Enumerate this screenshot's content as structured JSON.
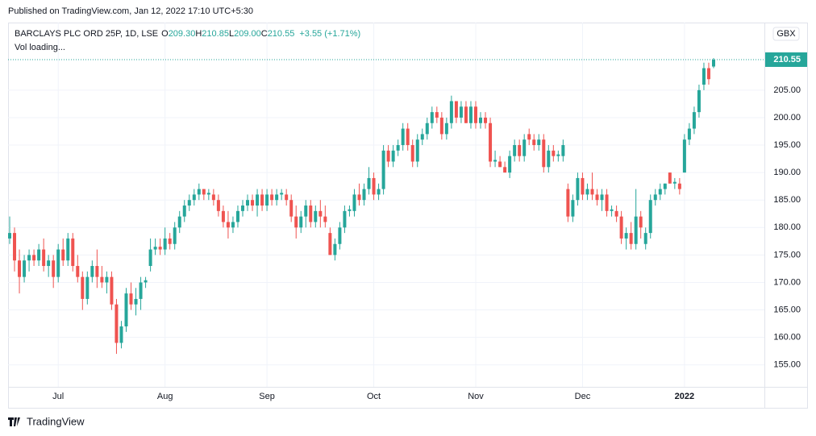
{
  "header": {
    "published": "Published on TradingView.com, Jan 12, 2022 17:10 UTC+5:30",
    "footer": "TradingView"
  },
  "chart_data": {
    "type": "candlestick",
    "title": "BARCLAYS PLC ORD 25P, 1D, LSE",
    "legend": {
      "o_label": "O",
      "open": "209.30",
      "h_label": "H",
      "high": "210.85",
      "l_label": "L",
      "low": "209.00",
      "c_label": "C",
      "close": "210.55",
      "change": "+3.55 (+1.71%)"
    },
    "volume_note": "Vol loading...",
    "currency": "GBX",
    "up_color": "#26a69a",
    "down_color": "#ef5350",
    "last_price": {
      "value": 210.55,
      "label": "210.55"
    },
    "ylim": [
      151.0,
      217.3
    ],
    "yticks": [
      {
        "value": 155,
        "label": "155.00"
      },
      {
        "value": 160,
        "label": "160.00"
      },
      {
        "value": 165,
        "label": "165.00"
      },
      {
        "value": 170,
        "label": "170.00"
      },
      {
        "value": 175,
        "label": "175.00"
      },
      {
        "value": 180,
        "label": "180.00"
      },
      {
        "value": 185,
        "label": "185.00"
      },
      {
        "value": 190,
        "label": "190.00"
      },
      {
        "value": 195,
        "label": "195.00"
      },
      {
        "value": 200,
        "label": "200.00"
      },
      {
        "value": 205,
        "label": "205.00"
      }
    ],
    "grid": true,
    "categories": [
      null,
      null,
      null,
      null,
      null,
      null,
      null,
      null,
      null,
      null,
      "Jul",
      null,
      null,
      null,
      null,
      null,
      null,
      null,
      null,
      null,
      null,
      null,
      null,
      null,
      null,
      null,
      null,
      null,
      null,
      null,
      null,
      null,
      "Aug",
      null,
      null,
      null,
      null,
      null,
      null,
      null,
      null,
      null,
      null,
      null,
      null,
      null,
      null,
      null,
      null,
      null,
      null,
      null,
      null,
      "Sep",
      null,
      null,
      null,
      null,
      null,
      null,
      null,
      null,
      null,
      null,
      null,
      null,
      null,
      null,
      null,
      null,
      null,
      null,
      null,
      null,
      null,
      "Oct",
      null,
      null,
      null,
      null,
      null,
      null,
      null,
      null,
      null,
      null,
      null,
      null,
      null,
      null,
      null,
      null,
      null,
      null,
      null,
      null,
      "Nov",
      null,
      null,
      null,
      null,
      null,
      null,
      null,
      null,
      null,
      null,
      null,
      null,
      null,
      null,
      null,
      null,
      null,
      null,
      null,
      null,
      null,
      "Dec",
      null,
      null,
      null,
      null,
      null,
      null,
      null,
      null,
      null,
      null,
      null,
      null,
      null,
      null,
      null,
      null,
      null,
      null,
      null,
      null,
      "2022",
      null,
      null,
      null,
      null,
      null,
      null
    ],
    "candles": [
      [
        178,
        182,
        177,
        179
      ],
      [
        179,
        180,
        172,
        174
      ],
      [
        174,
        176,
        168,
        171
      ],
      [
        171,
        175,
        170,
        174
      ],
      [
        174,
        176,
        172,
        175
      ],
      [
        175,
        176,
        173,
        174
      ],
      [
        174,
        177,
        173,
        176
      ],
      [
        176,
        178,
        172,
        173
      ],
      [
        173,
        175,
        171,
        174
      ],
      [
        174,
        175,
        169,
        171
      ],
      [
        171,
        177,
        170,
        176
      ],
      [
        176,
        178,
        173,
        174
      ],
      [
        174,
        179,
        173,
        178
      ],
      [
        178,
        179,
        172,
        173
      ],
      [
        173,
        175,
        170,
        171
      ],
      [
        171,
        172,
        165,
        167
      ],
      [
        167,
        172,
        166,
        171
      ],
      [
        171,
        174,
        170,
        173
      ],
      [
        173,
        176,
        169,
        171
      ],
      [
        171,
        173,
        169,
        170
      ],
      [
        170,
        172,
        168,
        171
      ],
      [
        171,
        172,
        165,
        166
      ],
      [
        166,
        167,
        157,
        159
      ],
      [
        159,
        163,
        158,
        162
      ],
      [
        162,
        169,
        161,
        168
      ],
      [
        168,
        170,
        165,
        166
      ],
      [
        166,
        169,
        164,
        167
      ],
      [
        167,
        171,
        165,
        170
      ],
      [
        170,
        171,
        169,
        170.4
      ],
      [
        173,
        178,
        172,
        176
      ],
      [
        176,
        178,
        175,
        176.5
      ],
      [
        176.5,
        178,
        175,
        176
      ],
      [
        176,
        180,
        175,
        178
      ],
      [
        178,
        179,
        176,
        177
      ],
      [
        177,
        181,
        176,
        180
      ],
      [
        180,
        183,
        179,
        182
      ],
      [
        182,
        185,
        181,
        184
      ],
      [
        184,
        186,
        183,
        185
      ],
      [
        185,
        187,
        184,
        186
      ],
      [
        186,
        188,
        185,
        187
      ],
      [
        187,
        187,
        185,
        186
      ],
      [
        186,
        187,
        185,
        186.3
      ],
      [
        186,
        187,
        184,
        185
      ],
      [
        185,
        186,
        182,
        183
      ],
      [
        183,
        184,
        180,
        181
      ],
      [
        181,
        183,
        178,
        180
      ],
      [
        180,
        182,
        179,
        181
      ],
      [
        181,
        184,
        180,
        183
      ],
      [
        183,
        185,
        182,
        184
      ],
      [
        184,
        186,
        183,
        185
      ],
      [
        185,
        186,
        183,
        184
      ],
      [
        184,
        187,
        182,
        186
      ],
      [
        186,
        187,
        183,
        184
      ],
      [
        184,
        187,
        183,
        186
      ],
      [
        186,
        187,
        184,
        185
      ],
      [
        185,
        187,
        184,
        186
      ],
      [
        186,
        187,
        185,
        186.3
      ],
      [
        186,
        187,
        184,
        185
      ],
      [
        185,
        186,
        181,
        182
      ],
      [
        182,
        184,
        178,
        180
      ],
      [
        180,
        183,
        179,
        182
      ],
      [
        182,
        185,
        180,
        184
      ],
      [
        184,
        185,
        180,
        181
      ],
      [
        181,
        184,
        180,
        183
      ],
      [
        183,
        185,
        180,
        182
      ],
      [
        182,
        184,
        180,
        181
      ],
      [
        179,
        180,
        175,
        175
      ],
      [
        175,
        178,
        174,
        177
      ],
      [
        177,
        181,
        176,
        180
      ],
      [
        180,
        184,
        179,
        183
      ],
      [
        183,
        184,
        182,
        183.3
      ],
      [
        183,
        187,
        182,
        186
      ],
      [
        186,
        188,
        184,
        185
      ],
      [
        185,
        188,
        184,
        187
      ],
      [
        187,
        191,
        186,
        189
      ],
      [
        189,
        190,
        185,
        186
      ],
      [
        186,
        188,
        185,
        187
      ],
      [
        187,
        195,
        186,
        194
      ],
      [
        194,
        195,
        191,
        192
      ],
      [
        192,
        195,
        191,
        194
      ],
      [
        194,
        196,
        193,
        195
      ],
      [
        195,
        199,
        194,
        198
      ],
      [
        198,
        199,
        194,
        195
      ],
      [
        195,
        196,
        191,
        192
      ],
      [
        192,
        197,
        191,
        196
      ],
      [
        196,
        198,
        195,
        197
      ],
      [
        197,
        200,
        196,
        199
      ],
      [
        199,
        202,
        198,
        201
      ],
      [
        201,
        202,
        199,
        200
      ],
      [
        200,
        201,
        196,
        197
      ],
      [
        197,
        200,
        196,
        199
      ],
      [
        199,
        204,
        198,
        203
      ],
      [
        203,
        203,
        199,
        200
      ],
      [
        200,
        203,
        199,
        202
      ],
      [
        202,
        203,
        199,
        199
      ],
      [
        199,
        203,
        198,
        202
      ],
      [
        202,
        203,
        198,
        199
      ],
      [
        199,
        201,
        198,
        200
      ],
      [
        200,
        201,
        198,
        199
      ],
      [
        199,
        200,
        191,
        192
      ],
      [
        192,
        194,
        191,
        192.3
      ],
      [
        192,
        193,
        191,
        191
      ],
      [
        191,
        192,
        190,
        190
      ],
      [
        190,
        194,
        189,
        193
      ],
      [
        193,
        196,
        192,
        195
      ],
      [
        195,
        196,
        192,
        193
      ],
      [
        193,
        197,
        192,
        196
      ],
      [
        197,
        198,
        195,
        196
      ],
      [
        196,
        197,
        194,
        195
      ],
      [
        195,
        197,
        194,
        196
      ],
      [
        196,
        197,
        190,
        191
      ],
      [
        191,
        195,
        190,
        194
      ],
      [
        194,
        195,
        192,
        193
      ],
      [
        193,
        194,
        192,
        193.3
      ],
      [
        193,
        196,
        192,
        195
      ],
      [
        187,
        188,
        181,
        182
      ],
      [
        182,
        186,
        181,
        185
      ],
      [
        185,
        190,
        184,
        189
      ],
      [
        189,
        190,
        185,
        186
      ],
      [
        186,
        188,
        185,
        187
      ],
      [
        187,
        190,
        185,
        186
      ],
      [
        186,
        187,
        184,
        185
      ],
      [
        185,
        187,
        183,
        186
      ],
      [
        186,
        187,
        182,
        183
      ],
      [
        183,
        184,
        182,
        183.3
      ],
      [
        183,
        184,
        181,
        182
      ],
      [
        182,
        183,
        177,
        178
      ],
      [
        178,
        180,
        176,
        179
      ],
      [
        179,
        181,
        176,
        177
      ],
      [
        177,
        187,
        176,
        182
      ],
      [
        182,
        183,
        178,
        180
      ],
      [
        177,
        180,
        176,
        179
      ],
      [
        179,
        186,
        178,
        185
      ],
      [
        185,
        187,
        184,
        186
      ],
      [
        186,
        188,
        185,
        187
      ],
      [
        187,
        188,
        186,
        188
      ],
      [
        190,
        190,
        188,
        188
      ],
      [
        188,
        189,
        187,
        188.3
      ],
      [
        188,
        189,
        186,
        187
      ],
      [
        190,
        197,
        190,
        196
      ],
      [
        196,
        199,
        195,
        198
      ],
      [
        198,
        202,
        197,
        201
      ],
      [
        201,
        206,
        200,
        205
      ],
      [
        206,
        210,
        205,
        209
      ],
      [
        209,
        210,
        206,
        207
      ],
      [
        209.3,
        210.85,
        209.0,
        210.55
      ]
    ]
  }
}
